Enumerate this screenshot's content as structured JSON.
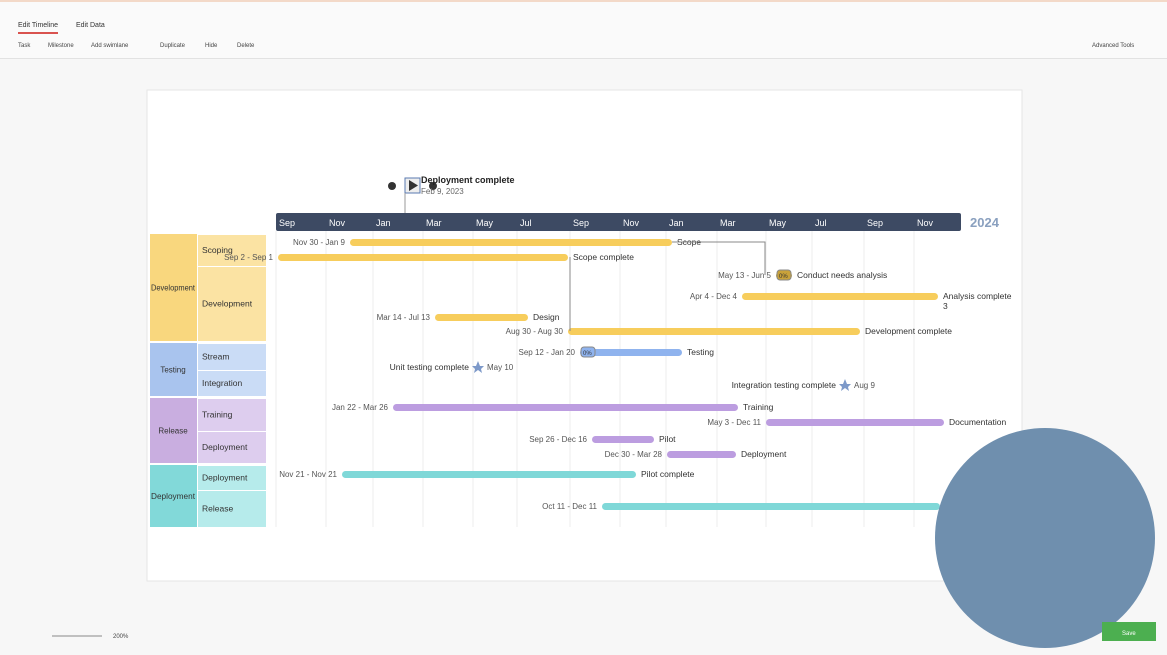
{
  "tabs": [
    "Edit Timeline",
    "Edit Data"
  ],
  "toolbar": [
    "Task",
    "Milestone",
    "Add swimlane",
    "Duplicate",
    "Hide",
    "Delete"
  ],
  "advanced_tools": "Advanced Tools",
  "milestone": {
    "title": "Deployment complete",
    "date": "Feb 9, 2023"
  },
  "timescale": {
    "months": [
      "Sep",
      "Nov",
      "Jan",
      "Mar",
      "May",
      "Jul",
      "Sep",
      "Nov",
      "Jan",
      "Mar",
      "May",
      "Jul",
      "Sep",
      "Nov"
    ],
    "year": "2024"
  },
  "swimlanes": [
    {
      "name": "Development",
      "color": "#f9d77e",
      "sub_color": "#fbe3a3",
      "lanes": [
        "Scoping",
        "Development"
      ]
    },
    {
      "name": "Testing",
      "color": "#a9c4ee",
      "sub_color": "#cadcf6",
      "lanes": [
        "Stream",
        "Integration"
      ]
    },
    {
      "name": "Release",
      "color": "#c9aee0",
      "sub_color": "#ddcdee",
      "lanes": [
        "Training",
        "Deployment"
      ]
    },
    {
      "name": "Deployment",
      "color": "#82d9d9",
      "sub_color": "#b6ebeb",
      "lanes": [
        "Deployment",
        "Release"
      ]
    }
  ],
  "tasks": [
    {
      "dates": "Nov 30 - Jan 9",
      "name": "Scope",
      "color": "#f7cd5c"
    },
    {
      "dates": "Sep 2 - Sep 1",
      "name": "Scope complete",
      "color": "#f7cd5c"
    },
    {
      "dates": "May 13 - Jun 5",
      "name": "Conduct needs analysis",
      "color": "#c9a23a",
      "badge": "0%"
    },
    {
      "dates": "Apr 4 - Dec 4",
      "name": "Analysis complete",
      "name2": "3",
      "color": "#f7cd5c"
    },
    {
      "dates": "Mar 14 - Jul 13",
      "name": "Design",
      "color": "#f7cd5c"
    },
    {
      "dates": "Aug 30 - Aug 30",
      "name": "Development complete",
      "color": "#f7cd5c"
    },
    {
      "dates": "Sep 12 - Jan 20",
      "name": "Testing",
      "color": "#8fb3ee",
      "badge": "0%"
    },
    {
      "dates": "May 10",
      "name": "Unit testing complete",
      "color": "#7d99c9"
    },
    {
      "dates": "Aug 9",
      "name": "Integration testing complete",
      "color": "#7d99c9"
    },
    {
      "dates": "Jan 22 - Mar 26",
      "name": "Training",
      "color": "#bc9de0"
    },
    {
      "dates": "May 3 - Dec 11",
      "name": "Documentation",
      "color": "#bc9de0"
    },
    {
      "dates": "Sep 26 - Dec 16",
      "name": "Pilot",
      "color": "#bc9de0"
    },
    {
      "dates": "Dec 30 - Mar 28",
      "name": "Deployment",
      "color": "#bc9de0"
    },
    {
      "dates": "Nov 21 - Nov 21",
      "name": "Pilot complete",
      "color": "#7fd8d8"
    },
    {
      "dates": "Oct 11 - Dec 11",
      "color": "#7fd8d8"
    }
  ],
  "zoom": "200%",
  "save": "Save"
}
